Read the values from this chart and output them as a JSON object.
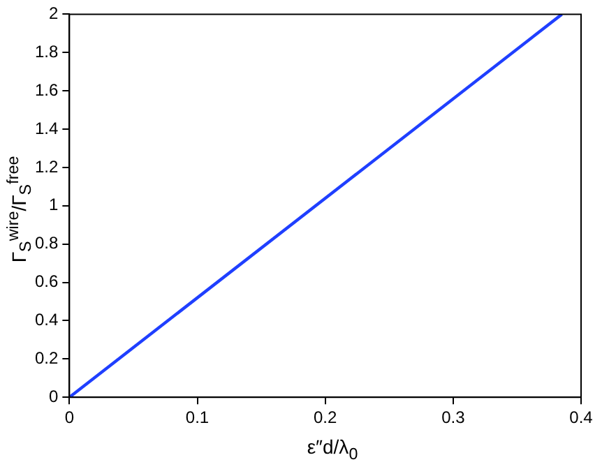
{
  "chart_data": {
    "type": "line",
    "xlabel": "ε″d/λ$_{0}$",
    "ylabel": "Γ$_{S}$$^{wire}$/Γ$_{S}$$^{free}$",
    "x": [
      0,
      0.385
    ],
    "series": [
      {
        "color": "#1f3fff",
        "values": [
          0,
          2
        ]
      }
    ],
    "xlim": [
      0,
      0.4
    ],
    "xticks": [
      0,
      0.1,
      0.2,
      0.3,
      0.4
    ],
    "ylim": [
      0,
      2
    ],
    "yticks": [
      0,
      0.2,
      0.4,
      0.6,
      0.8,
      1,
      1.2,
      1.4,
      1.6,
      1.8,
      2
    ],
    "grid": false,
    "legend": false,
    "marker": "none",
    "line_style": "solid"
  }
}
